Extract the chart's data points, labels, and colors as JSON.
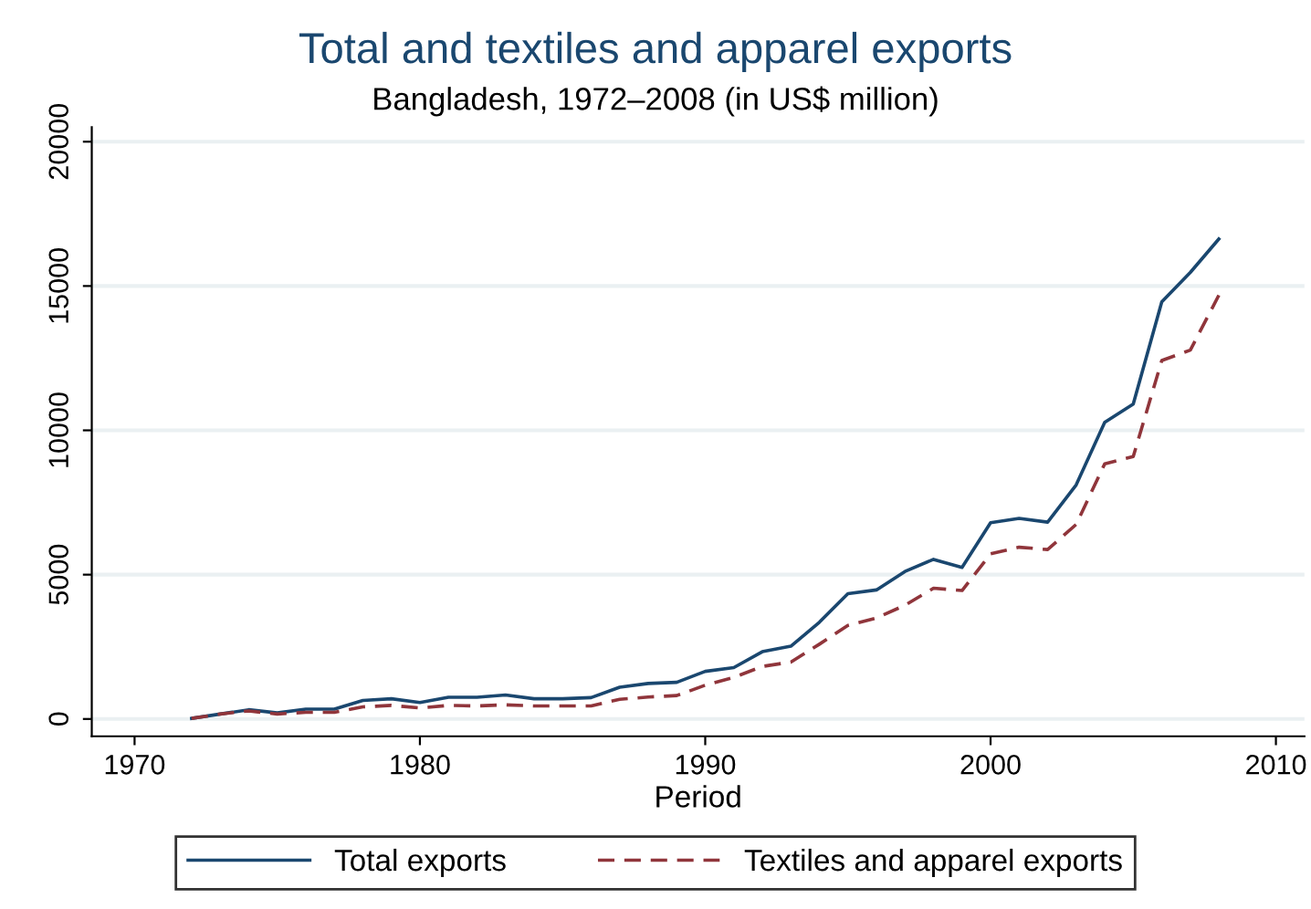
{
  "chart_data": {
    "type": "line",
    "title": "Total and textiles and apparel exports",
    "subtitle": "Bangladesh, 1972–2008 (in US$ million)",
    "xlabel": "Period",
    "x": [
      1972,
      1973,
      1974,
      1975,
      1976,
      1977,
      1978,
      1979,
      1980,
      1981,
      1982,
      1983,
      1984,
      1985,
      1986,
      1987,
      1988,
      1989,
      1990,
      1991,
      1992,
      1993,
      1994,
      1995,
      1996,
      1997,
      1998,
      1999,
      2000,
      2001,
      2002,
      2003,
      2004,
      2005,
      2006,
      2007,
      2008
    ],
    "series": [
      {
        "name": "Total exports",
        "color": "#1a476f",
        "line_style": "solid",
        "values": [
          20,
          170,
          320,
          210,
          340,
          340,
          640,
          700,
          570,
          750,
          750,
          830,
          700,
          700,
          740,
          1100,
          1230,
          1270,
          1650,
          1780,
          2330,
          2520,
          3350,
          4340,
          4470,
          5110,
          5530,
          5250,
          6800,
          6950,
          6820,
          8110,
          10280,
          10910,
          14450,
          15470,
          16630
        ]
      },
      {
        "name": "Textiles and apparel exports",
        "color": "#90353b",
        "line_style": "dashed",
        "values": [
          20,
          170,
          280,
          170,
          230,
          230,
          420,
          470,
          380,
          470,
          450,
          490,
          450,
          450,
          450,
          680,
          760,
          810,
          1170,
          1440,
          1820,
          1970,
          2590,
          3240,
          3500,
          3940,
          4530,
          4450,
          5720,
          5950,
          5870,
          6740,
          8840,
          9090,
          12420,
          12780,
          14680
        ]
      }
    ],
    "xlim": [
      1968.5,
      2011
    ],
    "xticks": [
      1970,
      1980,
      1990,
      2000,
      2010
    ],
    "ylim": [
      -600,
      20500
    ],
    "yticks": [
      0,
      5000,
      10000,
      15000,
      20000
    ],
    "grid": "y",
    "legend": "bottom",
    "marker": "none"
  }
}
